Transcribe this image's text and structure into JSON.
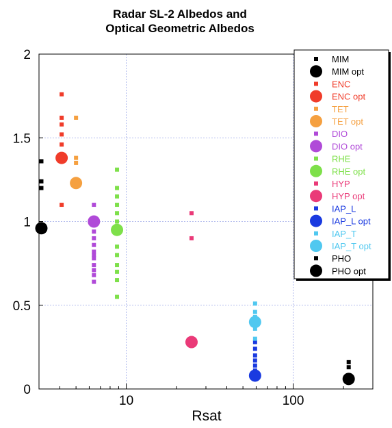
{
  "chart_data": {
    "type": "scatter",
    "title_lines": [
      "Radar SL-2 Albedos and",
      "Optical Geometric Albedos"
    ],
    "xlabel": "Rsat",
    "ylabel": "",
    "x_scale": "log",
    "xlim": [
      3,
      300
    ],
    "ylim": [
      0,
      2
    ],
    "x_ticks": [
      10,
      100
    ],
    "x_tick_labels": [
      "10",
      "100"
    ],
    "y_ticks": [
      0,
      0.5,
      1,
      1.5,
      2
    ],
    "y_tick_labels": [
      "0",
      "0.5",
      "1",
      "1.5",
      "2"
    ],
    "grid": true,
    "legend_position": "top-right",
    "series": [
      {
        "name": "MIM",
        "marker": "square",
        "color": "#000000",
        "points": [
          [
            3.1,
            1.36
          ],
          [
            3.1,
            1.24
          ],
          [
            3.1,
            1.2
          ]
        ]
      },
      {
        "name": "MIM opt",
        "marker": "circle",
        "color": "#000000",
        "points": [
          [
            3.1,
            0.96
          ]
        ]
      },
      {
        "name": "ENC",
        "marker": "square",
        "color": "#f03c2a",
        "points": [
          [
            4.1,
            1.76
          ],
          [
            4.1,
            1.62
          ],
          [
            4.1,
            1.58
          ],
          [
            4.1,
            1.52
          ],
          [
            4.1,
            1.46
          ],
          [
            4.1,
            1.1
          ]
        ]
      },
      {
        "name": "ENC opt",
        "marker": "circle",
        "color": "#f03c2a",
        "points": [
          [
            4.1,
            1.38
          ]
        ]
      },
      {
        "name": "TET",
        "marker": "square",
        "color": "#f5a040",
        "points": [
          [
            5.0,
            1.62
          ],
          [
            5.0,
            1.38
          ],
          [
            5.0,
            1.35
          ]
        ]
      },
      {
        "name": "TET opt",
        "marker": "circle",
        "color": "#f5a040",
        "points": [
          [
            5.0,
            1.23
          ]
        ]
      },
      {
        "name": "DIO",
        "marker": "square",
        "color": "#b04ad8",
        "points": [
          [
            6.4,
            1.1
          ],
          [
            6.4,
            0.94
          ],
          [
            6.4,
            0.9
          ],
          [
            6.4,
            0.86
          ],
          [
            6.4,
            0.82
          ],
          [
            6.4,
            0.8
          ],
          [
            6.4,
            0.78
          ],
          [
            6.4,
            0.74
          ],
          [
            6.4,
            0.71
          ],
          [
            6.4,
            0.68
          ],
          [
            6.4,
            0.64
          ]
        ]
      },
      {
        "name": "DIO opt",
        "marker": "circle",
        "color": "#b04ad8",
        "points": [
          [
            6.4,
            1.0
          ]
        ]
      },
      {
        "name": "RHE",
        "marker": "square",
        "color": "#7ee04a",
        "points": [
          [
            8.8,
            1.31
          ],
          [
            8.8,
            1.2
          ],
          [
            8.8,
            1.15
          ],
          [
            8.8,
            1.1
          ],
          [
            8.8,
            1.05
          ],
          [
            8.8,
            1.0
          ],
          [
            8.8,
            0.85
          ],
          [
            8.8,
            0.8
          ],
          [
            8.8,
            0.74
          ],
          [
            8.8,
            0.7
          ],
          [
            8.8,
            0.65
          ],
          [
            8.8,
            0.55
          ]
        ]
      },
      {
        "name": "RHE opt",
        "marker": "circle",
        "color": "#7ee04a",
        "points": [
          [
            8.8,
            0.95
          ]
        ]
      },
      {
        "name": "HYP",
        "marker": "square",
        "color": "#ea3a78",
        "points": [
          [
            24.6,
            1.05
          ],
          [
            24.6,
            0.9
          ]
        ]
      },
      {
        "name": "HYP opt",
        "marker": "circle",
        "color": "#ea3a78",
        "points": [
          [
            24.6,
            0.28
          ]
        ]
      },
      {
        "name": "IAP_L",
        "marker": "square",
        "color": "#1a3ae0",
        "points": [
          [
            59.1,
            0.28
          ],
          [
            59.1,
            0.24
          ],
          [
            59.1,
            0.2
          ],
          [
            59.1,
            0.17
          ],
          [
            59.1,
            0.14
          ],
          [
            59.1,
            0.11
          ]
        ]
      },
      {
        "name": "IAP_L opt",
        "marker": "circle",
        "color": "#1a3ae0",
        "points": [
          [
            59.1,
            0.08
          ]
        ]
      },
      {
        "name": "IAP_T",
        "marker": "square",
        "color": "#50c8f0",
        "points": [
          [
            59.1,
            0.51
          ],
          [
            59.1,
            0.46
          ],
          [
            59.1,
            0.43
          ],
          [
            59.1,
            0.36
          ],
          [
            59.1,
            0.3
          ]
        ]
      },
      {
        "name": "IAP_T opt",
        "marker": "circle",
        "color": "#50c8f0",
        "points": [
          [
            59.1,
            0.4
          ]
        ]
      },
      {
        "name": "PHO",
        "marker": "square",
        "color": "#000000",
        "points": [
          [
            215,
            0.16
          ],
          [
            215,
            0.13
          ]
        ]
      },
      {
        "name": "PHO opt",
        "marker": "circle",
        "color": "#000000",
        "points": [
          [
            215,
            0.06
          ]
        ]
      }
    ]
  }
}
